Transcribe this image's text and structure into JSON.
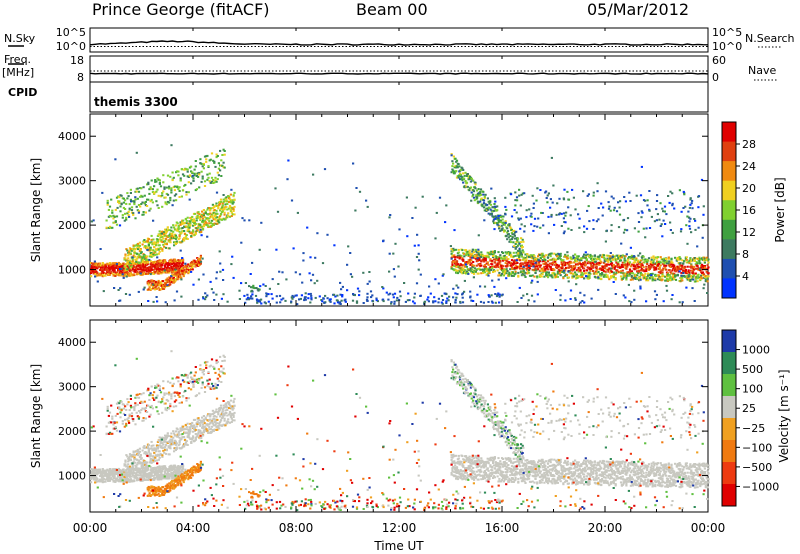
{
  "header": {
    "station": "Prince George (fitACF)",
    "beam": "Beam 00",
    "date": "05/Mar/2012"
  },
  "strip_labels": {
    "nsky": "N.Sky",
    "nsearch": "N.Search",
    "freq_line1": "Freq.",
    "freq_line2": "[MHz]",
    "nave": "Nave",
    "cpid": "CPID",
    "cpid_value": "themis 3300"
  },
  "strip_ticks": {
    "noise_left": [
      "10^5",
      "10^0"
    ],
    "noise_right": [
      "10^5",
      "10^0"
    ],
    "freq_left": [
      "18",
      "8"
    ],
    "nave_right": [
      "60",
      "0"
    ]
  },
  "chart_data": [
    {
      "type": "heatmap",
      "name": "power",
      "ylabel": "Slant Range [km]",
      "xlim": [
        "00:00",
        "24:00"
      ],
      "ylim": [
        180,
        4500
      ],
      "y_ticks": [
        1000,
        2000,
        3000,
        4000
      ],
      "colorbar_label": "Power [dB]",
      "colorbar_ticks": [
        "28",
        "24",
        "20",
        "16",
        "12",
        "8",
        "4"
      ],
      "colors": [
        "#0033ff",
        "#1f4fb0",
        "#3d7a60",
        "#3fa040",
        "#80d030",
        "#f0d020",
        "#f08a10",
        "#e04010",
        "#e00000"
      ],
      "features": [
        {
          "desc": "scatter band",
          "t": [
            0.0,
            3.5
          ],
          "range_km": [
            900,
            1200
          ]
        },
        {
          "desc": "rising band",
          "t": [
            2.0,
            5.0
          ],
          "range_km": [
            1200,
            2400
          ]
        },
        {
          "desc": "band",
          "t": [
            13.0,
            24.0
          ],
          "range_km": [
            900,
            1600
          ]
        }
      ]
    },
    {
      "type": "heatmap",
      "name": "velocity",
      "ylabel": "Slant Range [km]",
      "xlabel": "Time UT",
      "x_ticks": [
        "00:00",
        "04:00",
        "08:00",
        "12:00",
        "16:00",
        "20:00",
        "00:00"
      ],
      "ylim": [
        180,
        4500
      ],
      "y_ticks": [
        1000,
        2000,
        3000,
        4000
      ],
      "colorbar_label": "Velocity [m s⁻¹]",
      "colorbar_ticks": [
        "1000",
        "500",
        "100",
        "25",
        "−25",
        "−100",
        "−500",
        "−1000"
      ],
      "colors": [
        "#1e3aa8",
        "#2e8b57",
        "#5fc040",
        "#c8c8c0",
        "#f0a020",
        "#f07a10",
        "#ee3a10",
        "#e00000"
      ]
    }
  ]
}
